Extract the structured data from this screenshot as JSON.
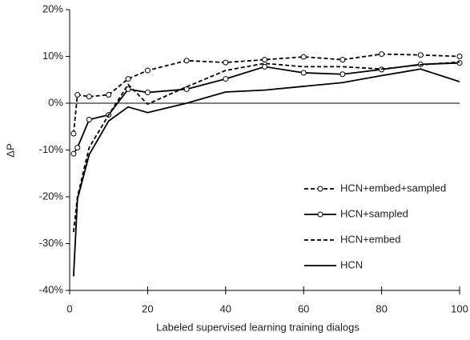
{
  "chart_data": {
    "type": "line",
    "xlabel": "Labeled supervised learning training dialogs",
    "ylabel": "ΔP",
    "x": [
      1,
      2,
      5,
      10,
      15,
      20,
      30,
      40,
      50,
      60,
      70,
      80,
      90,
      100
    ],
    "xlim": [
      0,
      100
    ],
    "xticks": [
      0,
      20,
      40,
      60,
      80,
      100
    ],
    "ylim": [
      -40,
      20
    ],
    "yticks": [
      {
        "value": -40,
        "label": "-40%"
      },
      {
        "value": -30,
        "label": "-30%"
      },
      {
        "value": -20,
        "label": "-20%"
      },
      {
        "value": -10,
        "label": "-10%"
      },
      {
        "value": 0,
        "label": "0%"
      },
      {
        "value": 10,
        "label": "10%"
      },
      {
        "value": 20,
        "label": "20%"
      }
    ],
    "legend": "lower right",
    "series": [
      {
        "name": "HCN+embed+sampled",
        "color": "#000000",
        "dash": "dashed",
        "marker": "circle",
        "values": [
          -6.5,
          1.8,
          1.4,
          1.8,
          5.2,
          7.0,
          9.1,
          8.7,
          9.3,
          9.9,
          9.3,
          10.5,
          10.3,
          10.0
        ]
      },
      {
        "name": "HCN+sampled",
        "color": "#000000",
        "dash": "solid",
        "marker": "circle",
        "values": [
          -10.8,
          -9.5,
          -3.5,
          -2.5,
          3.0,
          2.3,
          3.0,
          5.2,
          7.8,
          6.5,
          6.2,
          7.2,
          8.3,
          8.6
        ]
      },
      {
        "name": "HCN+embed",
        "color": "#000000",
        "dash": "dashed",
        "marker": "none",
        "values": [
          -27.5,
          -20.0,
          -9.5,
          -2.5,
          4.0,
          -0.2,
          3.5,
          7.0,
          8.5,
          7.8,
          7.8,
          7.3,
          8.2,
          8.8
        ]
      },
      {
        "name": "HCN",
        "color": "#000000",
        "dash": "solid",
        "marker": "none",
        "values": [
          -37.0,
          -20.5,
          -11.0,
          -3.8,
          -0.8,
          -2.0,
          0.0,
          2.4,
          2.8,
          3.6,
          4.4,
          5.9,
          7.3,
          4.6
        ]
      }
    ]
  }
}
